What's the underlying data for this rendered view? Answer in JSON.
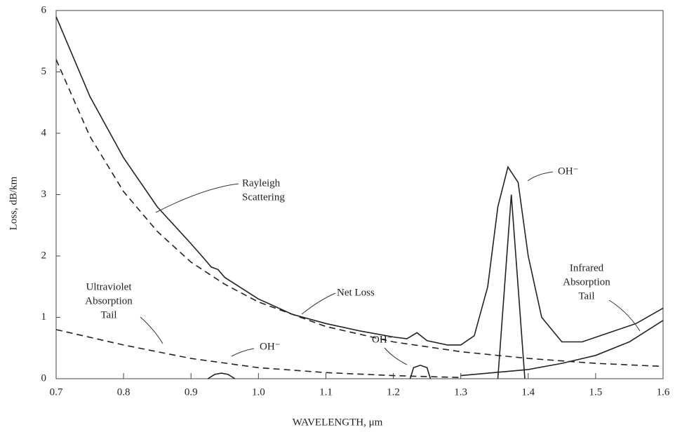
{
  "chart_data": {
    "type": "line",
    "xlabel": "WAVELENGTH, μm",
    "ylabel": "Loss, dB/km",
    "xlim": [
      0.7,
      1.6
    ],
    "ylim": [
      0,
      6
    ],
    "xticks": [
      0.7,
      0.8,
      0.9,
      {
        "value": 1,
        "label": "1.0"
      },
      1.1,
      1.2,
      1.3,
      1.4,
      1.5,
      1.6
    ],
    "yticks": [
      0,
      1,
      2,
      3,
      4,
      5,
      6
    ],
    "series": [
      {
        "color": "#222222",
        "dash": false,
        "x": [
          0.7,
          0.75,
          0.8,
          0.85,
          0.9,
          0.92,
          0.93,
          0.94,
          0.95,
          1.0,
          1.05,
          1.1,
          1.15,
          1.2,
          1.22,
          1.235,
          1.25,
          1.28,
          1.3,
          1.32,
          1.34,
          1.355,
          1.37,
          1.385,
          1.4,
          1.42,
          1.45,
          1.48,
          1.52,
          1.56,
          1.6
        ],
        "values": [
          5.9,
          4.6,
          3.6,
          2.8,
          2.2,
          1.95,
          1.82,
          1.78,
          1.65,
          1.3,
          1.05,
          0.9,
          0.78,
          0.68,
          0.65,
          0.75,
          0.62,
          0.55,
          0.55,
          0.7,
          1.5,
          2.8,
          3.45,
          3.2,
          2.0,
          1.0,
          0.6,
          0.6,
          0.75,
          0.9,
          1.15
        ]
      },
      {
        "color": "#222222",
        "dash": true,
        "x": [
          0.7,
          0.75,
          0.8,
          0.85,
          0.9,
          0.95,
          1.0,
          1.1,
          1.2,
          1.3,
          1.4,
          1.5,
          1.6
        ],
        "values": [
          5.2,
          3.95,
          3.05,
          2.4,
          1.9,
          1.54,
          1.25,
          0.85,
          0.6,
          0.44,
          0.33,
          0.25,
          0.2
        ]
      },
      {
        "color": "#222222",
        "dash": true,
        "x": [
          0.7,
          0.8,
          0.9,
          1.0,
          1.1,
          1.2,
          1.3
        ],
        "values": [
          0.8,
          0.55,
          0.33,
          0.18,
          0.1,
          0.05,
          0.02
        ]
      },
      {
        "color": "#222222",
        "dash": false,
        "x": [
          1.3,
          1.4,
          1.45,
          1.5,
          1.55,
          1.6
        ],
        "values": [
          0.05,
          0.15,
          0.25,
          0.38,
          0.6,
          0.95
        ]
      },
      {
        "color": "#222222",
        "dash": false,
        "x": [
          0.925,
          0.935,
          0.945,
          0.955,
          0.965,
          null,
          1.225,
          1.23,
          1.24,
          1.25,
          1.255,
          null,
          1.355,
          1.365,
          1.375,
          1.385,
          1.395
        ],
        "values": [
          0,
          0.07,
          0.09,
          0.07,
          0,
          null,
          0,
          0.18,
          0.22,
          0.18,
          0,
          null,
          0,
          1.5,
          3.0,
          1.5,
          0
        ]
      }
    ],
    "annotations": [
      [
        "Rayleigh",
        "Scattering"
      ],
      [
        "Net Loss"
      ],
      [
        "Ultraviolet",
        "Absorption",
        "Tail"
      ],
      [
        "Infrared",
        "Absorption",
        "Tail"
      ],
      [
        "OH⁻"
      ],
      [
        "OH⁻"
      ],
      [
        "OH⁻"
      ]
    ]
  }
}
